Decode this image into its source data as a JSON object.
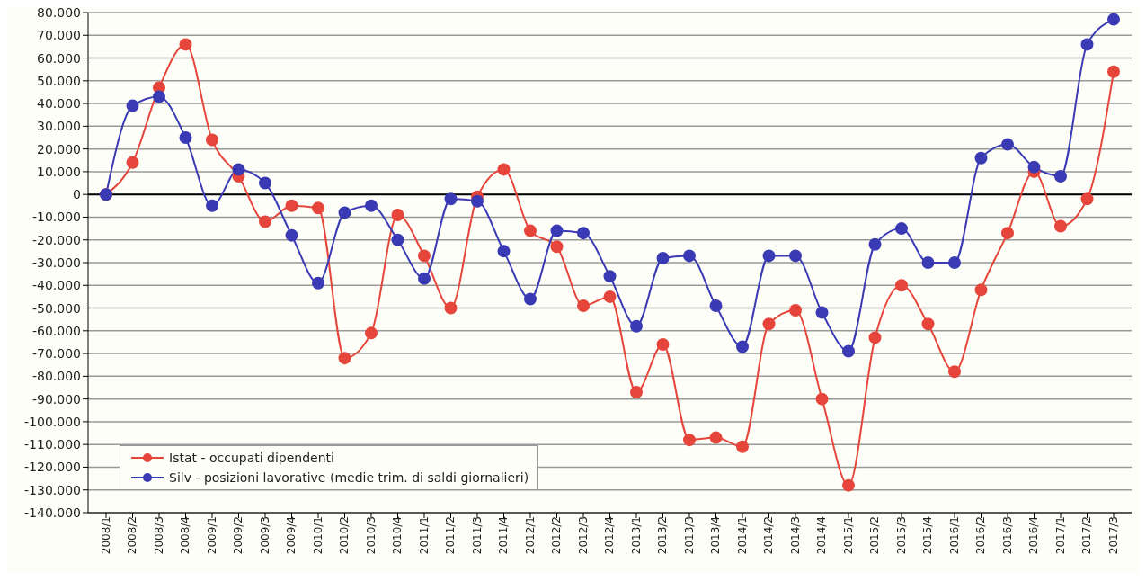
{
  "chart_data": {
    "type": "line",
    "categories": [
      "2008/1",
      "2008/2",
      "2008/3",
      "2008/4",
      "2009/1",
      "2009/2",
      "2009/3",
      "2009/4",
      "2010/1",
      "2010/2",
      "2010/3",
      "2010/4",
      "2011/1",
      "2011/2",
      "2011/3",
      "2011/4",
      "2012/1",
      "2012/2",
      "2012/3",
      "2012/4",
      "2013/1",
      "2013/2",
      "2013/3",
      "2013/4",
      "2014/1",
      "2014/2",
      "2014/3",
      "2014/4",
      "2015/1",
      "2015/2",
      "2015/3",
      "2015/4",
      "2016/1",
      "2016/2",
      "2016/3",
      "2016/4",
      "2017/1",
      "2017/2",
      "2017/3"
    ],
    "series": [
      {
        "name": "Istat - occupati dipendenti",
        "color": "#e5453a",
        "values": [
          0,
          14000,
          47000,
          66000,
          24000,
          8000,
          -12000,
          -5000,
          -6000,
          -72000,
          -61000,
          -9000,
          -27000,
          -50000,
          -1000,
          11000,
          -16000,
          -23000,
          -49000,
          -45000,
          -87000,
          -66000,
          -108000,
          -107000,
          -111000,
          -57000,
          -51000,
          -90000,
          -128000,
          -63000,
          -40000,
          -57000,
          -78000,
          -42000,
          -17000,
          10000,
          -14000,
          -2000,
          54000
        ]
      },
      {
        "name": "Silv - posizioni lavorative (medie trim. di saldi giornalieri)",
        "color": "#3a3ab4",
        "values": [
          0,
          39000,
          43000,
          25000,
          -5000,
          11000,
          5000,
          -18000,
          -39000,
          -8000,
          -5000,
          -20000,
          -37000,
          -2000,
          -3000,
          -25000,
          -46000,
          -16000,
          -17000,
          -36000,
          -58000,
          -28000,
          -27000,
          -49000,
          -67000,
          -27000,
          -27000,
          -52000,
          -69000,
          -22000,
          -15000,
          -30000,
          -30000,
          16000,
          22000,
          12000,
          8000,
          66000,
          77000
        ]
      }
    ],
    "ylim": [
      -140000,
      80000
    ],
    "yticks": [
      {
        "value": 80000,
        "label": "80.000"
      },
      {
        "value": 70000,
        "label": "70.000"
      },
      {
        "value": 60000,
        "label": "60.000"
      },
      {
        "value": 50000,
        "label": "50.000"
      },
      {
        "value": 40000,
        "label": "40.000"
      },
      {
        "value": 30000,
        "label": "30.000"
      },
      {
        "value": 20000,
        "label": "20.000"
      },
      {
        "value": 10000,
        "label": "10.000"
      },
      {
        "value": 0,
        "label": "0"
      },
      {
        "value": -10000,
        "label": "-10.000"
      },
      {
        "value": -20000,
        "label": "-20.000"
      },
      {
        "value": -30000,
        "label": "-30.000"
      },
      {
        "value": -40000,
        "label": "-40.000"
      },
      {
        "value": -50000,
        "label": "-50.000"
      },
      {
        "value": -60000,
        "label": "-60.000"
      },
      {
        "value": -70000,
        "label": "-70.000"
      },
      {
        "value": -80000,
        "label": "-80.000"
      },
      {
        "value": -90000,
        "label": "-90.000"
      },
      {
        "value": -100000,
        "label": "-100.000"
      },
      {
        "value": -110000,
        "label": "-110.000"
      },
      {
        "value": -120000,
        "label": "-120.000"
      },
      {
        "value": -130000,
        "label": "-130.000"
      },
      {
        "value": -140000,
        "label": "-140.000"
      }
    ],
    "grid": "y",
    "legend": "bottom left",
    "marker": "circle",
    "line_style": "solid"
  }
}
